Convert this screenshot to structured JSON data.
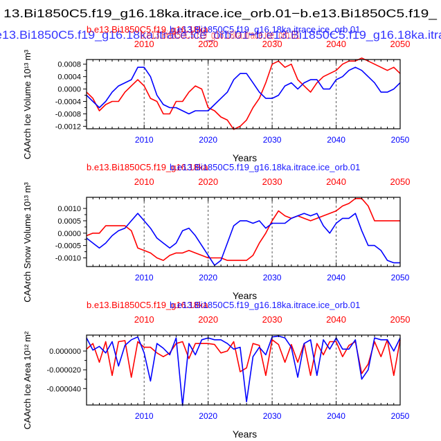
{
  "figure": {
    "title_black": "13.Bi1850C5.f19_g16.18ka.itrace.ice_orb.01−b.e13.Bi1850C5.f19_",
    "title_blue": "e13.Bi1850C5.f19_g16.18ka.itrace.ice_orb.01−b.e13.Bi1850C5.f19_g16.18ka.itra",
    "title_red": "b.e13.Bi1850C5.f19_g16.18ka.itrace.ice_orb.01"
  },
  "colors": {
    "red": "#ff0000",
    "blue": "#0000ff",
    "black": "#000000",
    "gridline": "#555555"
  },
  "chart_data": [
    {
      "type": "line",
      "title_red": "b.e13.Bi1850C5.f19_g16.18ka",
      "title_blue": "b.e13.Bi1850C5.f19_g16.18ka.itrace.ice_orb.01",
      "ylabel": "CAArch Ice Volume 10¹³ m³",
      "xlabel": "Years",
      "xlim": [
        2001,
        2050
      ],
      "ylim": [
        -0.00128,
        0.00095
      ],
      "x_ticks": [
        2010,
        2020,
        2030,
        2040,
        2050
      ],
      "x_tick_labels_bottom": [
        "2010",
        "2020",
        "2030",
        "2040",
        "2050"
      ],
      "x_tick_labels_top": [
        "2010",
        "2020",
        "2030",
        "2040",
        "2050"
      ],
      "y_ticks": [
        0.0008,
        0.0004,
        0.0,
        -0.0004,
        -0.0008,
        -0.0012
      ],
      "y_tick_labels": [
        "0.0008",
        "0.0004",
        "0.0000",
        "-0.0004",
        "-0.0008",
        "-0.0012"
      ],
      "x": [
        2001,
        2002,
        2003,
        2004,
        2005,
        2006,
        2007,
        2008,
        2009,
        2010,
        2011,
        2012,
        2013,
        2014,
        2015,
        2016,
        2017,
        2018,
        2019,
        2020,
        2021,
        2022,
        2023,
        2024,
        2025,
        2026,
        2027,
        2028,
        2029,
        2030,
        2031,
        2032,
        2033,
        2034,
        2035,
        2036,
        2037,
        2038,
        2039,
        2040,
        2041,
        2042,
        2043,
        2044,
        2045,
        2046,
        2047,
        2048,
        2049,
        2050
      ],
      "series": [
        {
          "name": "b.e13.Bi1850C5.f19_g16.18ka",
          "color": "#ff0000",
          "values": [
            -0.0001,
            -0.0003,
            -0.0007,
            -0.0005,
            -0.0004,
            -0.0004,
            -0.0001,
            0.0001,
            0.0003,
            0.0001,
            -0.0003,
            -0.0004,
            -0.0008,
            -0.0008,
            -0.0004,
            -0.0004,
            -0.0001,
            0.0001,
            0.0,
            -0.0006,
            -0.0007,
            -0.0009,
            -0.001,
            -0.0013,
            -0.0012,
            -0.001,
            -0.0006,
            -0.0003,
            0.0002,
            0.0008,
            0.0009,
            0.0007,
            0.0008,
            0.0003,
            0.0001,
            -0.0001,
            0.0002,
            0.0004,
            0.0005,
            0.0006,
            0.0008,
            0.0009,
            0.0009,
            0.001,
            0.0009,
            0.0008,
            0.0007,
            0.0006,
            0.0007,
            0.0005
          ]
        },
        {
          "name": "b.e13.Bi1850C5.f19_g16.18ka.itrace.ice_orb.01",
          "color": "#0000ff",
          "values": [
            -0.0002,
            -0.0004,
            -0.0006,
            -0.0004,
            -0.0001,
            0.0001,
            0.0002,
            0.0003,
            0.0007,
            0.0007,
            0.0004,
            -0.0002,
            -0.0005,
            -0.0006,
            -0.0006,
            -0.0007,
            -0.0008,
            -0.0007,
            -0.0007,
            -0.0007,
            -0.0005,
            -0.0003,
            -0.0001,
            0.0003,
            0.0005,
            0.0005,
            0.0002,
            -0.0001,
            -0.0003,
            -0.0003,
            -0.0002,
            0.0001,
            0.0002,
            0.0,
            0.0002,
            0.0003,
            0.0003,
            0.0,
            0.0,
            0.0003,
            0.0004,
            0.0006,
            0.0007,
            0.0006,
            0.0004,
            0.0002,
            -0.0001,
            -0.0001,
            0.0,
            0.0002
          ]
        }
      ]
    },
    {
      "type": "line",
      "title_red": "b.e13.Bi1850C5.f19_g16.18ka",
      "title_blue": "b.e13.Bi1850C5.f19_g16.18ka.itrace.ice_orb.01",
      "ylabel": "CAArch Snow Volume 10¹³ m³",
      "xlabel": "Years",
      "xlim": [
        2001,
        2050
      ],
      "ylim": [
        -0.00135,
        0.00145
      ],
      "x_ticks": [
        2010,
        2020,
        2030,
        2040,
        2050
      ],
      "x_tick_labels_bottom": [
        "2010",
        "2020",
        "2030",
        "2040",
        "2050"
      ],
      "x_tick_labels_top": [
        "2010",
        "2020",
        "2030",
        "2040",
        "2050"
      ],
      "y_ticks": [
        0.001,
        0.0005,
        0.0,
        -0.0005,
        -0.001
      ],
      "y_tick_labels": [
        "0.0010",
        "0.0005",
        "0.0000",
        "-0.0005",
        "-0.0010"
      ],
      "x": [
        2001,
        2002,
        2003,
        2004,
        2005,
        2006,
        2007,
        2008,
        2009,
        2010,
        2011,
        2012,
        2013,
        2014,
        2015,
        2016,
        2017,
        2018,
        2019,
        2020,
        2021,
        2022,
        2023,
        2024,
        2025,
        2026,
        2027,
        2028,
        2029,
        2030,
        2031,
        2032,
        2033,
        2034,
        2035,
        2036,
        2037,
        2038,
        2039,
        2040,
        2041,
        2042,
        2043,
        2044,
        2045,
        2046,
        2047,
        2048,
        2049,
        2050
      ],
      "series": [
        {
          "name": "b.e13.Bi1850C5.f19_g16.18ka",
          "color": "#ff0000",
          "values": [
            -0.0001,
            0.0,
            0.0,
            0.0003,
            0.0003,
            0.0003,
            0.0003,
            0.0001,
            -0.0006,
            -0.0007,
            -0.0008,
            -0.001,
            -0.0011,
            -0.0009,
            -0.0008,
            -0.0008,
            -0.0007,
            -0.0008,
            -0.0009,
            -0.001,
            -0.001,
            -0.001,
            -0.0011,
            -0.0011,
            -0.0011,
            -0.0011,
            -0.0009,
            -0.0004,
            0.0,
            0.0005,
            0.0009,
            0.0007,
            0.0006,
            0.0007,
            0.0006,
            0.0005,
            0.0006,
            0.0007,
            0.0008,
            0.0009,
            0.0011,
            0.0012,
            0.0014,
            0.0014,
            0.0011,
            0.0005,
            0.0005,
            0.0005,
            0.0005,
            0.0005
          ]
        },
        {
          "name": "b.e13.Bi1850C5.f19_g16.18ka.itrace.ice_orb.01",
          "color": "#0000ff",
          "values": [
            -0.0002,
            -0.0004,
            -0.0006,
            -0.0004,
            -0.0001,
            0.0001,
            0.0002,
            0.0005,
            0.0008,
            0.0005,
            0.0002,
            -0.0002,
            -0.0004,
            -0.0006,
            -0.0004,
            0.0001,
            0.0002,
            -0.0001,
            -0.0005,
            -0.0009,
            -0.0013,
            -0.0011,
            -0.0004,
            0.0003,
            0.0005,
            0.0005,
            0.0004,
            0.0005,
            0.0002,
            0.0004,
            0.0004,
            0.0004,
            0.0006,
            0.0007,
            0.0008,
            0.0007,
            0.0008,
            0.0003,
            0.0,
            0.0004,
            0.0006,
            0.0006,
            0.0008,
            0.0001,
            -0.0005,
            -0.0005,
            -0.0007,
            -0.0011,
            -0.0012,
            -0.0012
          ]
        }
      ]
    },
    {
      "type": "line",
      "title_red": "b.e13.Bi1850C5.f19_g16.18ka",
      "title_blue": "b.e13.Bi1850C5.f19_g16.18ka.itrace.ice_orb.01",
      "ylabel": "CAArch Ice Area 10¹² m²",
      "xlabel": "Years",
      "xlim": [
        2001,
        2050
      ],
      "ylim": [
        -5.75e-05,
        1.7e-05
      ],
      "x_ticks": [
        2010,
        2020,
        2030,
        2040,
        2050
      ],
      "x_tick_labels_bottom": [
        "2010",
        "2020",
        "2030",
        "2040",
        "2050"
      ],
      "x_tick_labels_top": [
        "2010",
        "2020",
        "2030",
        "2040",
        "2050"
      ],
      "y_ticks": [
        0.0,
        -2e-05,
        -4e-05
      ],
      "y_tick_labels": [
        "0.000000",
        "-0.000020",
        "-0.000040"
      ],
      "x": [
        2001,
        2002,
        2003,
        2004,
        2005,
        2006,
        2007,
        2008,
        2009,
        2010,
        2011,
        2012,
        2013,
        2014,
        2015,
        2016,
        2017,
        2018,
        2019,
        2020,
        2021,
        2022,
        2023,
        2024,
        2025,
        2026,
        2027,
        2028,
        2029,
        2030,
        2031,
        2032,
        2033,
        2034,
        2035,
        2036,
        2037,
        2038,
        2039,
        2040,
        2041,
        2042,
        2043,
        2044,
        2045,
        2046,
        2047,
        2048,
        2049,
        2050
      ],
      "series": [
        {
          "name": "b.e13.Bi1850C5.f19_g16.18ka",
          "color": "#ff0000",
          "values": [
            2e-06,
            8e-06,
            -1.2e-05,
            1e-05,
            -2.6e-05,
            1e-05,
            1.1e-05,
            -2.8e-05,
            1e-05,
            4e-06,
            4e-06,
            -2e-06,
            -6e-06,
            -2e-06,
            8e-06,
            1e-05,
            -8e-06,
            8e-06,
            8e-06,
            8e-06,
            7e-06,
            -2e-06,
            0.0,
            1e-05,
            -2.2e-05,
            -1.8e-05,
            8e-06,
            6e-06,
            -2.6e-05,
            1.2e-05,
            7e-06,
            -1.2e-05,
            7e-06,
            -1.2e-05,
            8e-06,
            -2.6e-05,
            8e-06,
            -4e-06,
            1e-05,
            1e-05,
            -6e-06,
            6e-06,
            1e-05,
            -2.4e-05,
            -1.4e-05,
            1e-05,
            -6e-06,
            1.2e-05,
            -2.6e-05,
            1.2e-05
          ]
        },
        {
          "name": "b.e13.Bi1850C5.f19_g16.18ka.itrace.ice_orb.01",
          "color": "#0000ff",
          "values": [
            1.4e-05,
            1e-06,
            5e-06,
            -2e-06,
            1e-05,
            -1.6e-05,
            6e-06,
            1.2e-05,
            1.5e-05,
            -2e-06,
            -3.2e-05,
            8e-06,
            3e-06,
            -4e-06,
            1.4e-05,
            -5.8e-05,
            8e-06,
            -4e-06,
            1.2e-05,
            1.4e-05,
            1.2e-05,
            1.2e-05,
            8e-06,
            2e-06,
            4e-06,
            -5.4e-05,
            -6e-06,
            4e-06,
            -4e-06,
            1.5e-05,
            1.6e-05,
            1.4e-05,
            4e-06,
            -2.8e-05,
            8e-06,
            1.2e-05,
            -2.6e-05,
            1.2e-05,
            2e-06,
            1.4e-05,
            2e-06,
            2e-06,
            1.2e-05,
            -3e-05,
            -2e-05,
            1.4e-05,
            1.2e-05,
            1.2e-05,
            0.0,
            1.4e-05
          ]
        }
      ]
    }
  ]
}
